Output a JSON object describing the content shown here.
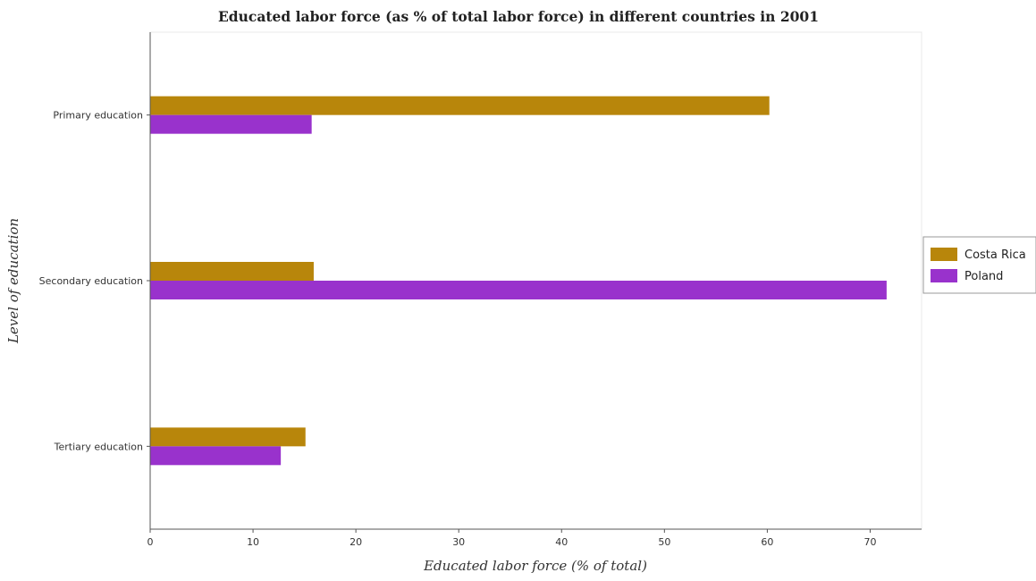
{
  "chart_data": {
    "type": "bar",
    "orientation": "horizontal",
    "title": "Educated labor force (as % of total labor force) in different countries in 2001",
    "xlabel": "Educated labor force (% of total)",
    "ylabel": "Level of education",
    "categories": [
      "Primary education",
      "Secondary education",
      "Tertiary education"
    ],
    "series": [
      {
        "name": "Costa Rica",
        "color": "#b8860b",
        "values": [
          60.2,
          15.9,
          15.1
        ]
      },
      {
        "name": "Poland",
        "color": "#9932cc",
        "values": [
          15.7,
          71.6,
          12.7
        ]
      }
    ],
    "xlim": [
      0,
      75
    ],
    "xticks": [
      0,
      10,
      20,
      30,
      40,
      50,
      60,
      70
    ],
    "grid": false,
    "legend_position": "right"
  }
}
